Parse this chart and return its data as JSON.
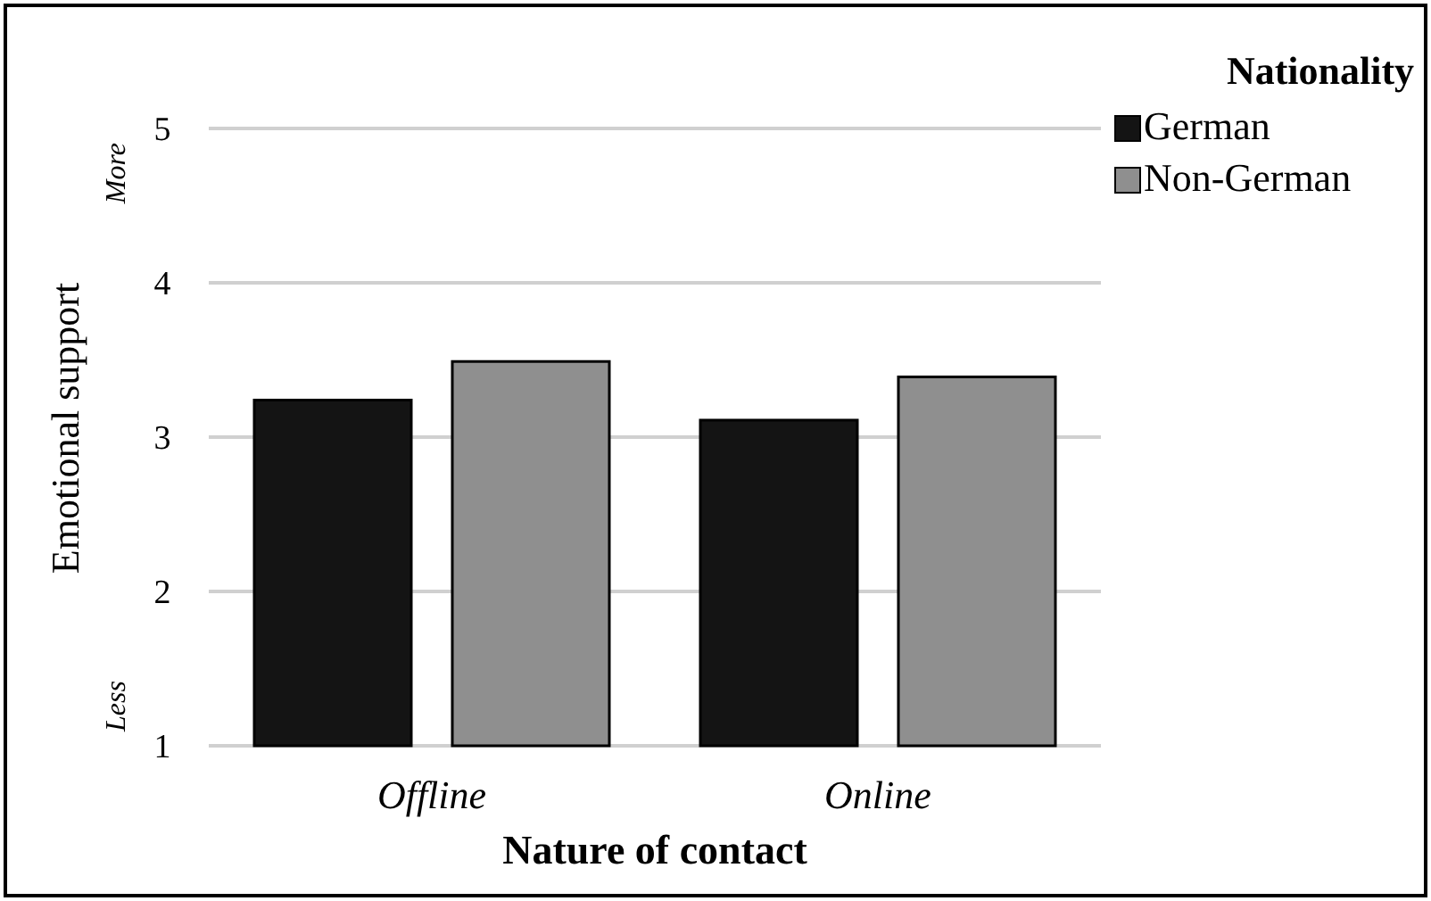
{
  "chart_data": {
    "type": "bar",
    "xlabel": "Nature of contact",
    "ylabel": "Emotional support",
    "legend_title": "Nationality",
    "categories": [
      "Offline",
      "Online"
    ],
    "series": [
      {
        "name": "German",
        "color": "#141414",
        "values": [
          3.24,
          3.11
        ]
      },
      {
        "name": "Non-German",
        "color": "#8f8f8f",
        "values": [
          3.49,
          3.39
        ]
      }
    ],
    "ylim": [
      1,
      5
    ],
    "yticks": [
      1,
      2,
      3,
      4,
      5
    ],
    "grid": "y",
    "legend": "top right",
    "annotations": [
      "More",
      "Less"
    ]
  }
}
